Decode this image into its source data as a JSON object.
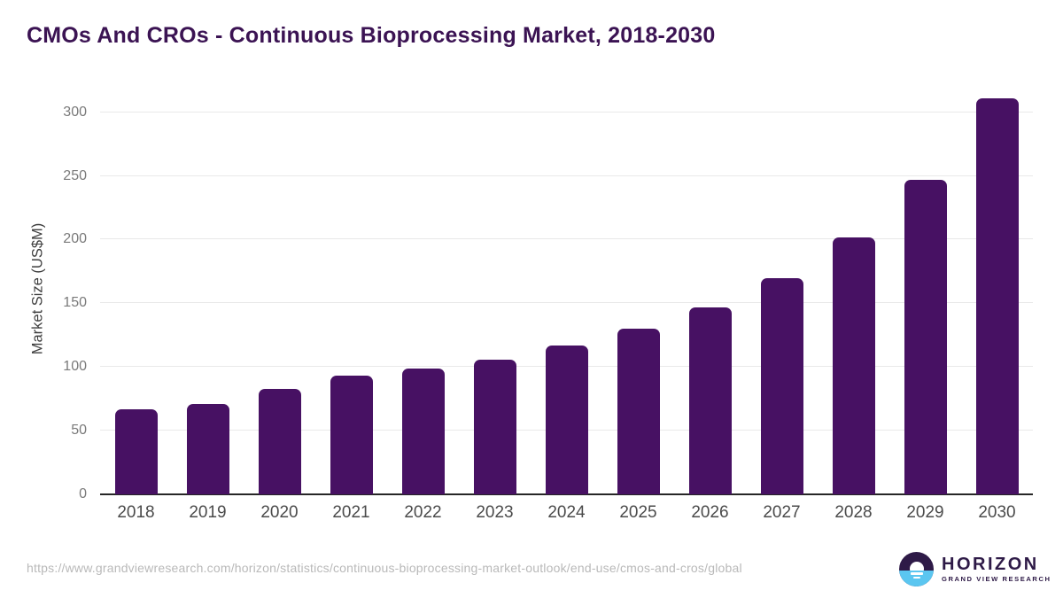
{
  "title": "CMOs And CROs - Continuous Bioprocessing Market, 2018-2030",
  "chart_data": {
    "type": "bar",
    "categories": [
      "2018",
      "2019",
      "2020",
      "2021",
      "2022",
      "2023",
      "2024",
      "2025",
      "2026",
      "2027",
      "2028",
      "2029",
      "2030"
    ],
    "values": [
      67,
      71,
      83,
      93,
      99,
      106,
      117,
      130,
      147,
      170,
      202,
      247,
      311
    ],
    "title": "CMOs And CROs - Continuous Bioprocessing Market, 2018-2030",
    "xlabel": "",
    "ylabel": "Market Size (US$M)",
    "ylim": [
      0,
      322
    ],
    "yticks": [
      0,
      50,
      100,
      150,
      200,
      250,
      300
    ],
    "grid": true,
    "legend": false,
    "bar_color": "#471163"
  },
  "colors": {
    "accent_purple": "#471163",
    "title_purple": "#3b1353",
    "gridline": "#e9e9e9",
    "axis_line": "#262626",
    "y_tick_text": "#7a7a7a",
    "x_tick_text": "#4b4b4b",
    "footer_text": "#b9b9b9",
    "logo_purple": "#2e1a47",
    "logo_blue": "#5bc6f0"
  },
  "footer": {
    "source_url": "https://www.grandviewresearch.com/horizon/statistics/continuous-bioprocessing-market-outlook/end-use/cmos-and-cros/global",
    "logo": {
      "name": "HORIZON",
      "subtitle": "GRAND VIEW RESEARCH"
    }
  }
}
